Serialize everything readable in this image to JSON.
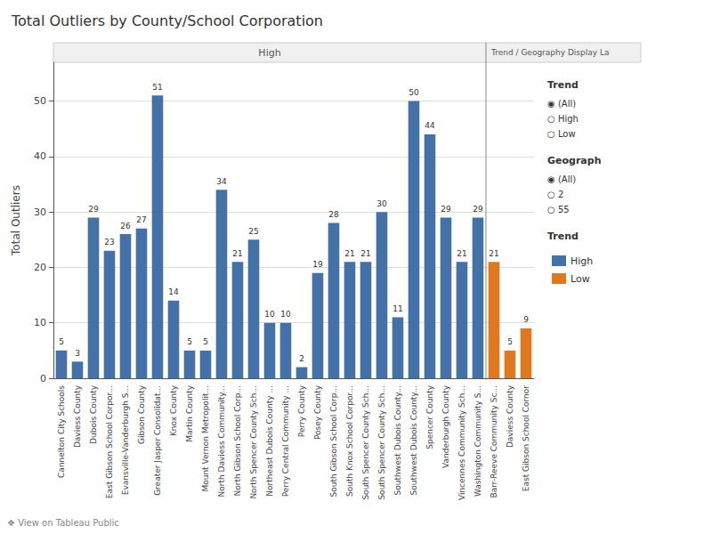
{
  "chart_data": {
    "type": "bar",
    "title": "Total Outliers by County/School Corporation",
    "ylabel": "Total Outliers",
    "categories": [
      "Cannelton City Schools",
      "Daviess County",
      "Dubois County",
      "East Gibson School Corpor...",
      "Evansville-Vanderburgh S...",
      "Gibson County",
      "Greater Jasper Consolidat...",
      "Knox County",
      "Martin County",
      "Mount Vernon Metropolit...",
      "North Daviess Community...",
      "North Gibson School Corp...",
      "North Spencer County Sch...",
      "Northeast Dubois County ...",
      "Perry Central Community ...",
      "Perry County",
      "Posey County",
      "South Gibson School Corp...",
      "South Knox School Corpor...",
      "South Spencer County Sch...",
      "South Spencer County Sch...",
      "Southwest Dubois County...",
      "Southwest Dubois County...",
      "Spencer County",
      "Vanderburgh County",
      "Vincennes Community Sch...",
      "Washington Community S...",
      "Barr-Reeve Community Sc...",
      "Daviess County",
      "East Gibson School Cornor"
    ],
    "series": [
      {
        "name": "High",
        "color": "#4472a8",
        "values": [
          5,
          3,
          29,
          23,
          26,
          27,
          51,
          14,
          5,
          5,
          34,
          21,
          25,
          10,
          10,
          2,
          19,
          28,
          21,
          21,
          30,
          11,
          50,
          44,
          29,
          21,
          29,
          null,
          null,
          null
        ]
      },
      {
        "name": "Low",
        "color": "#e07820",
        "values": [
          null,
          null,
          null,
          null,
          null,
          null,
          null,
          null,
          null,
          null,
          null,
          null,
          null,
          null,
          null,
          null,
          null,
          null,
          null,
          null,
          null,
          null,
          null,
          null,
          null,
          null,
          null,
          21,
          5,
          9
        ]
      }
    ],
    "ylim": [
      0,
      57
    ],
    "yticks": [
      0,
      10,
      20,
      30,
      40,
      50
    ],
    "grid": true,
    "data_labels": true,
    "legend": "right",
    "annotations": [
      [
        "High",
        "Trend / Geography Display La"
      ],
      [
        "Trend",
        "◉ (All)",
        "○ High",
        "○ Low"
      ],
      [
        "Geograph",
        "◉ (All)",
        "○ 2",
        "○ 55"
      ],
      [
        "Trend"
      ],
      [
        "❖ View on Tableau Public"
      ]
    ]
  }
}
